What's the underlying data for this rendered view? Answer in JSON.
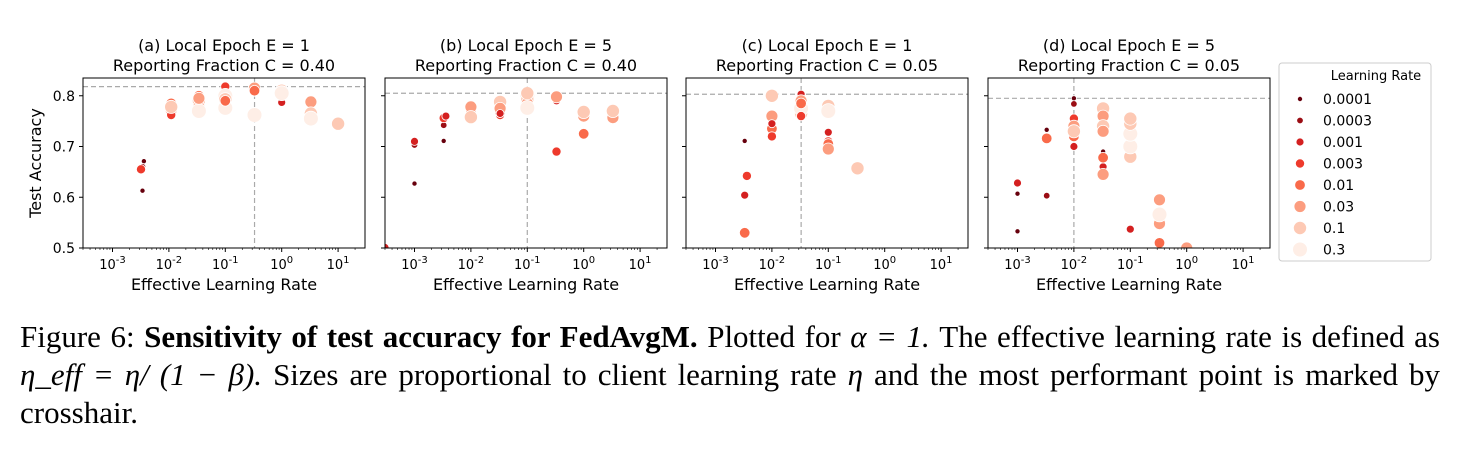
{
  "caption": {
    "label": "Figure 6:",
    "bold": "Sensitivity of test accuracy for FedAvgM.",
    "text1": "Plotted for",
    "eq_alpha": "α = 1.",
    "text2": "The effective learning rate is defined as",
    "eq_eff": "η_eff = η/ (1 − β).",
    "text3": "Sizes are proportional to client learning rate",
    "eta": "η",
    "text4": "and the most performant point is marked by crosshair."
  },
  "colors": {
    "palette": [
      "#67000d",
      "#9b0d14",
      "#d42020",
      "#ee3a2c",
      "#f96a4a",
      "#fc9d7f",
      "#fdc9b4",
      "#feeee6"
    ],
    "crosshair": "#aaaaaa"
  },
  "chart_data": [
    {
      "type": "scatter",
      "title": [
        "(a) Local Epoch E = 1",
        "Reporting Fraction C = 0.40"
      ],
      "xlabel": "Effective Learning Rate",
      "ylabel": "Test Accuracy",
      "xscale": "log",
      "xlim": [
        0.0003,
        30
      ],
      "ylim": [
        0.5,
        0.835
      ],
      "xticks": [
        "10^-3",
        "10^-2",
        "10^-1",
        "10^0",
        "10^1"
      ],
      "yticks": [
        0.5,
        0.6,
        0.7,
        0.8
      ],
      "best": {
        "x": 0.33,
        "y": 0.818
      },
      "points": [
        [
          0.0034,
          0.613,
          0
        ],
        [
          0.0036,
          0.671,
          0
        ],
        [
          0.0034,
          0.66,
          1
        ],
        [
          0.0032,
          0.655,
          3
        ],
        [
          0.011,
          0.77,
          2
        ],
        [
          0.011,
          0.785,
          4
        ],
        [
          0.011,
          0.772,
          5
        ],
        [
          0.011,
          0.762,
          3
        ],
        [
          0.011,
          0.778,
          6
        ],
        [
          0.034,
          0.79,
          6
        ],
        [
          0.034,
          0.778,
          5
        ],
        [
          0.034,
          0.8,
          4
        ],
        [
          0.034,
          0.77,
          7
        ],
        [
          0.034,
          0.795,
          5
        ],
        [
          0.1,
          0.818,
          3
        ],
        [
          0.1,
          0.8,
          7
        ],
        [
          0.1,
          0.793,
          6
        ],
        [
          0.1,
          0.776,
          7
        ],
        [
          0.1,
          0.79,
          4
        ],
        [
          0.33,
          0.818,
          1
        ],
        [
          0.33,
          0.808,
          3
        ],
        [
          0.33,
          0.815,
          5
        ],
        [
          0.33,
          0.762,
          7
        ],
        [
          0.33,
          0.81,
          4
        ],
        [
          1.0,
          0.8,
          4
        ],
        [
          1.0,
          0.787,
          2
        ],
        [
          1.0,
          0.81,
          6
        ],
        [
          1.0,
          0.805,
          7
        ],
        [
          3.3,
          0.788,
          5
        ],
        [
          3.3,
          0.765,
          6
        ],
        [
          3.3,
          0.755,
          7
        ],
        [
          10,
          0.745,
          6
        ]
      ]
    },
    {
      "type": "scatter",
      "title": [
        "(b) Local Epoch E = 5",
        "Reporting Fraction C = 0.40"
      ],
      "xlabel": "Effective Learning Rate",
      "xscale": "log",
      "xlim": [
        0.0003,
        30
      ],
      "ylim": [
        0.5,
        0.835
      ],
      "xticks": [
        "10^-3",
        "10^-2",
        "10^-1",
        "10^0",
        "10^1"
      ],
      "yticks": [
        0.5,
        0.6,
        0.7,
        0.8
      ],
      "best": {
        "x": 0.1,
        "y": 0.805
      },
      "points": [
        [
          0.0003,
          0.501,
          2
        ],
        [
          0.001,
          0.627,
          0
        ],
        [
          0.001,
          0.703,
          1
        ],
        [
          0.001,
          0.71,
          2
        ],
        [
          0.0033,
          0.711,
          0
        ],
        [
          0.0033,
          0.742,
          1
        ],
        [
          0.0033,
          0.756,
          3
        ],
        [
          0.0036,
          0.76,
          2
        ],
        [
          0.01,
          0.77,
          4
        ],
        [
          0.01,
          0.778,
          5
        ],
        [
          0.01,
          0.758,
          6
        ],
        [
          0.033,
          0.762,
          3
        ],
        [
          0.033,
          0.768,
          4
        ],
        [
          0.033,
          0.788,
          6
        ],
        [
          0.033,
          0.775,
          5
        ],
        [
          0.033,
          0.765,
          2
        ],
        [
          0.1,
          0.8,
          7
        ],
        [
          0.1,
          0.793,
          6
        ],
        [
          0.1,
          0.785,
          5
        ],
        [
          0.1,
          0.776,
          7
        ],
        [
          0.1,
          0.805,
          6
        ],
        [
          0.33,
          0.69,
          3
        ],
        [
          0.33,
          0.79,
          2
        ],
        [
          0.33,
          0.8,
          4
        ],
        [
          0.33,
          0.798,
          5
        ],
        [
          1.0,
          0.725,
          4
        ],
        [
          1.0,
          0.76,
          5
        ],
        [
          1.0,
          0.768,
          6
        ],
        [
          3.3,
          0.757,
          5
        ],
        [
          3.3,
          0.77,
          6
        ]
      ]
    },
    {
      "type": "scatter",
      "title": [
        "(c) Local Epoch E = 1",
        "Reporting Fraction C = 0.05"
      ],
      "xlabel": "Effective Learning Rate",
      "xscale": "log",
      "xlim": [
        0.0003,
        30
      ],
      "ylim": [
        0.5,
        0.835
      ],
      "xticks": [
        "10^-3",
        "10^-2",
        "10^-1",
        "10^0",
        "10^1"
      ],
      "yticks": [
        0.5,
        0.6,
        0.7,
        0.8
      ],
      "best": {
        "x": 0.033,
        "y": 0.803
      },
      "points": [
        [
          0.0033,
          0.711,
          0
        ],
        [
          0.0033,
          0.604,
          2
        ],
        [
          0.0036,
          0.642,
          3
        ],
        [
          0.0033,
          0.53,
          4
        ],
        [
          0.01,
          0.798,
          0
        ],
        [
          0.01,
          0.8,
          6
        ],
        [
          0.01,
          0.735,
          4
        ],
        [
          0.01,
          0.72,
          3
        ],
        [
          0.01,
          0.76,
          5
        ],
        [
          0.01,
          0.745,
          2
        ],
        [
          0.033,
          0.803,
          2
        ],
        [
          0.033,
          0.79,
          5
        ],
        [
          0.033,
          0.765,
          6
        ],
        [
          0.033,
          0.775,
          7
        ],
        [
          0.033,
          0.785,
          4
        ],
        [
          0.033,
          0.76,
          3
        ],
        [
          0.1,
          0.728,
          2
        ],
        [
          0.1,
          0.71,
          3
        ],
        [
          0.1,
          0.705,
          4
        ],
        [
          0.1,
          0.78,
          6
        ],
        [
          0.1,
          0.77,
          7
        ],
        [
          0.1,
          0.695,
          5
        ],
        [
          0.33,
          0.657,
          6
        ]
      ]
    },
    {
      "type": "scatter",
      "title": [
        "(d) Local Epoch E = 5",
        "Reporting Fraction C = 0.05"
      ],
      "xlabel": "Effective Learning Rate",
      "xscale": "log",
      "xlim": [
        0.0003,
        30
      ],
      "ylim": [
        0.5,
        0.835
      ],
      "xticks": [
        "10^-3",
        "10^-2",
        "10^-1",
        "10^0",
        "10^1"
      ],
      "yticks": [
        0.5,
        0.6,
        0.7,
        0.8
      ],
      "best": {
        "x": 0.01,
        "y": 0.795
      },
      "points": [
        [
          0.001,
          0.533,
          0
        ],
        [
          0.001,
          0.607,
          0
        ],
        [
          0.001,
          0.628,
          2
        ],
        [
          0.0033,
          0.733,
          0
        ],
        [
          0.0033,
          0.603,
          1
        ],
        [
          0.0033,
          0.716,
          4
        ],
        [
          0.01,
          0.795,
          0
        ],
        [
          0.01,
          0.784,
          1
        ],
        [
          0.01,
          0.755,
          3
        ],
        [
          0.01,
          0.74,
          5
        ],
        [
          0.01,
          0.72,
          4
        ],
        [
          0.01,
          0.7,
          2
        ],
        [
          0.01,
          0.73,
          6
        ],
        [
          0.033,
          0.69,
          0
        ],
        [
          0.033,
          0.66,
          2
        ],
        [
          0.033,
          0.678,
          4
        ],
        [
          0.033,
          0.645,
          5
        ],
        [
          0.033,
          0.775,
          6
        ],
        [
          0.033,
          0.76,
          5
        ],
        [
          0.033,
          0.74,
          6
        ],
        [
          0.033,
          0.73,
          5
        ],
        [
          0.1,
          0.537,
          2
        ],
        [
          0.1,
          0.676,
          3
        ],
        [
          0.1,
          0.68,
          6
        ],
        [
          0.1,
          0.7,
          7
        ],
        [
          0.1,
          0.725,
          7
        ],
        [
          0.1,
          0.745,
          6
        ],
        [
          0.1,
          0.755,
          6
        ],
        [
          0.33,
          0.51,
          4
        ],
        [
          0.33,
          0.548,
          5
        ],
        [
          0.33,
          0.595,
          5
        ],
        [
          0.33,
          0.566,
          7
        ],
        [
          1.0,
          0.5,
          5
        ]
      ]
    }
  ],
  "legend": {
    "title": "Learning Rate",
    "position": "right",
    "items": [
      "0.0001",
      "0.0003",
      "0.001",
      "0.003",
      "0.01",
      "0.03",
      "0.1",
      "0.3"
    ]
  }
}
